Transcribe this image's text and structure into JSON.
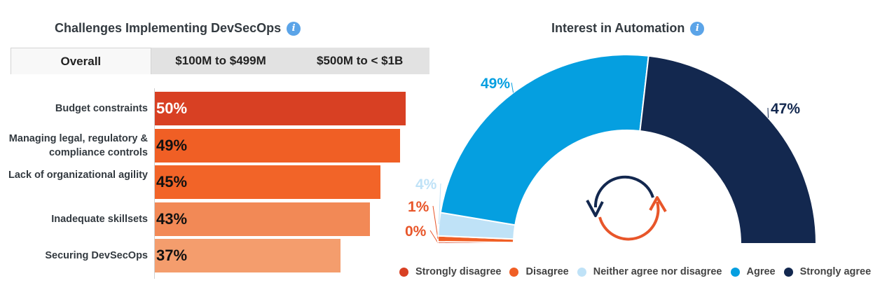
{
  "left_panel": {
    "title": "Challenges Implementing DevSecOps",
    "tabs": [
      {
        "label": "Overall",
        "active": true
      },
      {
        "label": "$100M to $499M",
        "active": false
      },
      {
        "label": "$500M to < $1B",
        "active": false
      }
    ]
  },
  "right_panel": {
    "title": "Interest in Automation"
  },
  "chart_data": [
    {
      "type": "bar",
      "orientation": "horizontal",
      "title": "Challenges Implementing DevSecOps",
      "categories": [
        "Budget constraints",
        "Managing legal, regulatory & compliance controls",
        "Lack of organizational agility",
        "Inadequate skillsets",
        "Securing DevSecOps"
      ],
      "values": [
        50,
        49,
        45,
        43,
        37
      ],
      "value_labels": [
        "50%",
        "49%",
        "45%",
        "43%",
        "37%"
      ],
      "colors": [
        "#d84023",
        "#f05f25",
        "#f26428",
        "#f28956",
        "#f49d6d"
      ],
      "xlim": [
        0,
        100
      ]
    },
    {
      "type": "pie",
      "variant": "semi-donut",
      "title": "Interest in Automation",
      "categories": [
        "Strongly disagree",
        "Disagree",
        "Neither agree nor disagree",
        "Agree",
        "Strongly agree"
      ],
      "values": [
        0,
        1,
        4,
        49,
        47
      ],
      "value_labels": [
        "0%",
        "1%",
        "4%",
        "49%",
        "47%"
      ],
      "colors": [
        "#d84023",
        "#f05f25",
        "#bfe2f7",
        "#059fe0",
        "#13284f"
      ],
      "label_colors": [
        "#e8562a",
        "#e8562a",
        "#bfe2f7",
        "#059fe0",
        "#13284f"
      ],
      "legend_position": "bottom"
    }
  ]
}
